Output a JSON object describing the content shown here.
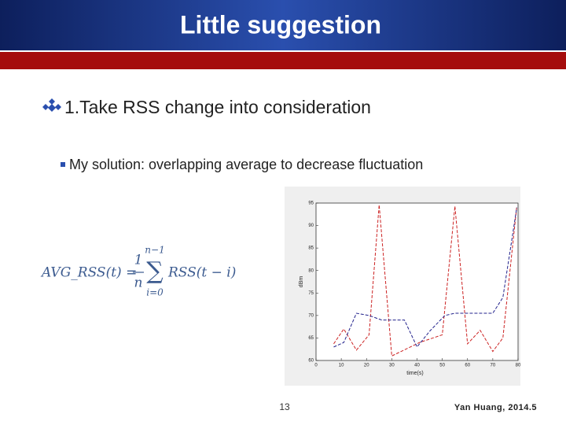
{
  "header": {
    "title": "Little suggestion"
  },
  "bullets": [
    {
      "text": "1.Take RSS change into consideration"
    },
    {
      "text": "My solution: overlapping average to decrease fluctuation"
    }
  ],
  "formula": {
    "lhs": "AVG_RSS(t) =",
    "numerator": "1",
    "denominator": "n",
    "sum_upper": "n−1",
    "sum_symbol": "∑",
    "sum_lower": "i=0",
    "rhs": "RSS(t − i)"
  },
  "chart_data": {
    "type": "line",
    "xlabel": "time(s)",
    "ylabel": "dBm",
    "xlim": [
      0,
      80
    ],
    "xticks": [
      0,
      10,
      20,
      30,
      40,
      50,
      60,
      70,
      80
    ],
    "ylim": [
      60,
      95
    ],
    "yticks": [
      60,
      65,
      70,
      75,
      80,
      85,
      90,
      95
    ],
    "series": [
      {
        "color": "#cc2222",
        "x": [
          7,
          11,
          16,
          21,
          25,
          30,
          41,
          50,
          55,
          60,
          65,
          70,
          74,
          79.5
        ],
        "values": [
          63.7,
          67,
          62.3,
          65.7,
          94.6,
          61,
          64,
          65.7,
          94.3,
          63.7,
          66.7,
          62,
          65,
          94.3
        ]
      },
      {
        "color": "#22228c",
        "x": [
          7,
          11,
          16,
          21,
          26,
          30,
          35,
          40,
          45,
          51,
          55,
          60,
          70,
          74,
          79.5
        ],
        "values": [
          63,
          64,
          70.5,
          70,
          69,
          69,
          69,
          63,
          66.5,
          70,
          70.5,
          70.5,
          70.5,
          74,
          94
        ]
      }
    ]
  },
  "footer": {
    "page": "13",
    "author": "Yan Huang, 2014.5"
  }
}
